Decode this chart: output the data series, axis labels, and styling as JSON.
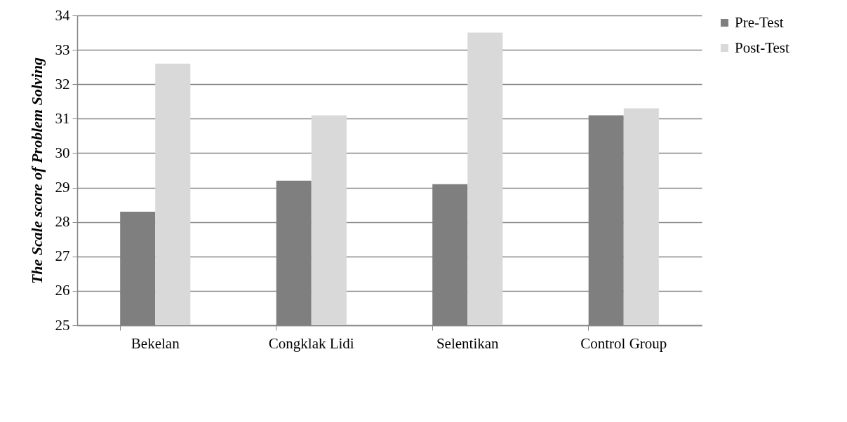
{
  "chart_data": {
    "type": "bar",
    "ylabel": "The Scale score of Problem Solving",
    "categories": [
      "Bekelan",
      "Congklak Lidi",
      "Selentikan",
      "Control Group"
    ],
    "series": [
      {
        "name": "Pre-Test",
        "color": "#7f7f7f",
        "values": [
          28.3,
          29.2,
          29.1,
          31.1
        ]
      },
      {
        "name": "Post-Test",
        "color": "#d9d9d9",
        "values": [
          32.6,
          31.1,
          33.5,
          31.3
        ]
      }
    ],
    "ylim": [
      25,
      34
    ],
    "yticks": [
      25,
      26,
      27,
      28,
      29,
      30,
      31,
      32,
      33,
      34
    ],
    "grid": "y",
    "legend": "right"
  }
}
